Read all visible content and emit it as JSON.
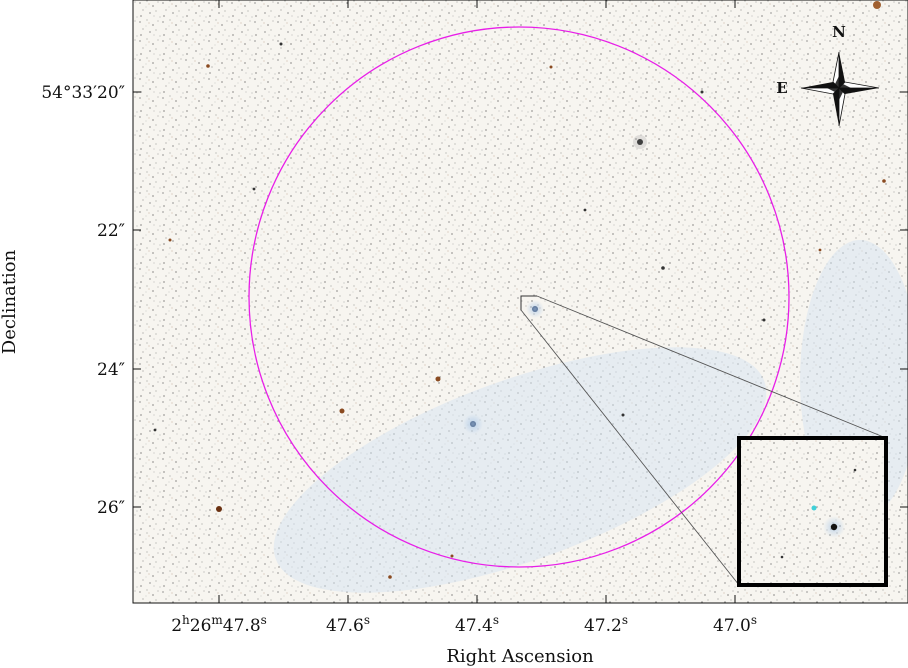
{
  "image": {
    "x_axis": {
      "title": "Right Ascension",
      "ticks": [
        {
          "h": "2",
          "hu": "h",
          "m": "26",
          "mu": "m",
          "s": "47.8",
          "su": "s"
        },
        {
          "s": "47.6",
          "su": "s"
        },
        {
          "s": "47.4",
          "su": "s"
        },
        {
          "s": "47.2",
          "su": "s"
        },
        {
          "s": "47.0",
          "su": "s"
        }
      ]
    },
    "y_axis": {
      "title": "Declination",
      "ticks": [
        {
          "deg": "54",
          "degu": "°",
          "min": "33",
          "minu": "′",
          "sec": "20",
          "secu": "″"
        },
        {
          "sec": "22",
          "secu": "″"
        },
        {
          "sec": "24",
          "secu": "″"
        },
        {
          "sec": "26",
          "secu": "″"
        }
      ]
    },
    "compass": {
      "north": "N",
      "east": "E"
    },
    "colors": {
      "circle": "#e81ee8",
      "inset_frame": "#000000",
      "zoom_lines": "#555555",
      "background": "#f6f4ef"
    },
    "overlays": [
      "magenta-aperture-circle",
      "zoom-box",
      "inset-panel",
      "compass-rose"
    ]
  }
}
